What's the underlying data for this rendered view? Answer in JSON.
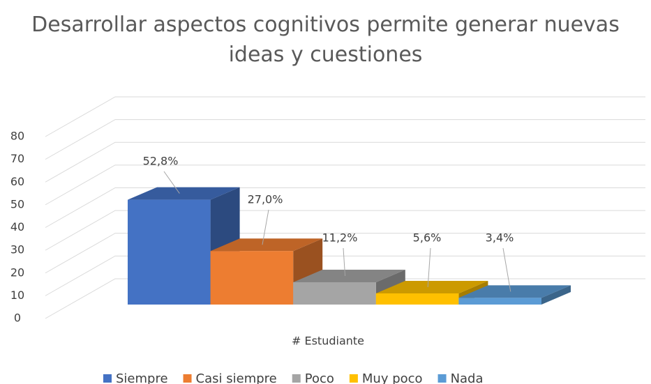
{
  "chart_data": {
    "type": "bar3d",
    "title": "Desarrollar aspectos cognitivos permite generar nuevas ideas y cuestiones",
    "x_label": "# Estudiante",
    "categories": [
      "Siempre",
      "Casi siempre",
      "Poco",
      "Muy poco",
      "Nada"
    ],
    "values": [
      47,
      24,
      10,
      5,
      3
    ],
    "value_labels": [
      "52,8%",
      "27,0%",
      "11,2%",
      "5,6%",
      "3,4%"
    ],
    "colors": [
      "#4472c4",
      "#ed7d31",
      "#a5a5a5",
      "#ffc000",
      "#5b9bd5"
    ],
    "ylim": [
      0,
      80
    ],
    "yticks": [
      0,
      10,
      20,
      30,
      40,
      50,
      60,
      70,
      80
    ],
    "grid": true,
    "legend": "bottom"
  }
}
